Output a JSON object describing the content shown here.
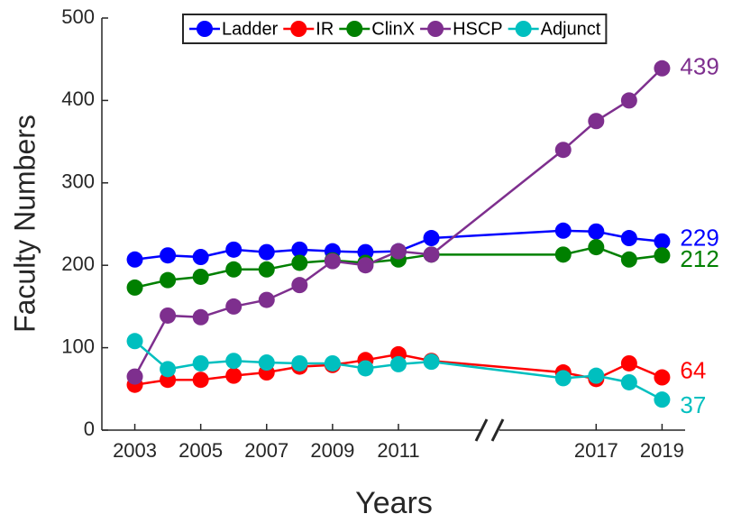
{
  "chart_data": {
    "type": "line",
    "x_label": "Years",
    "y_label": "Faculty Numbers",
    "x": [
      2003,
      2004,
      2005,
      2006,
      2007,
      2008,
      2009,
      2010,
      2011,
      2012,
      2016,
      2017,
      2018,
      2019
    ],
    "xlim": [
      2002,
      2019.7
    ],
    "xticks": [
      2003,
      2005,
      2007,
      2009,
      2011,
      2017,
      2019
    ],
    "ylim": [
      0,
      500
    ],
    "yticks": [
      0,
      100,
      200,
      300,
      400,
      500
    ],
    "grid": false,
    "legend": "top",
    "series": [
      {
        "name": "Ladder",
        "color": "#0000ff",
        "values": [
          207,
          212,
          210,
          219,
          216,
          219,
          217,
          216,
          217,
          233,
          242,
          241,
          233,
          229
        ]
      },
      {
        "name": "IR",
        "color": "#ff0000",
        "values": [
          55,
          61,
          61,
          66,
          70,
          77,
          79,
          85,
          92,
          84,
          70,
          62,
          81,
          64
        ]
      },
      {
        "name": "ClinX",
        "color": "#008000",
        "values": [
          173,
          182,
          186,
          195,
          195,
          203,
          206,
          203,
          207,
          213,
          213,
          222,
          207,
          212
        ]
      },
      {
        "name": "HSCP",
        "color": "#7e2f8e",
        "values": [
          65,
          139,
          137,
          150,
          158,
          176,
          205,
          200,
          217,
          213,
          340,
          375,
          400,
          439
        ]
      },
      {
        "name": "Adjunct",
        "color": "#00bfbf",
        "values": [
          108,
          74,
          81,
          84,
          82,
          81,
          81,
          75,
          80,
          83,
          63,
          66,
          58,
          37
        ]
      }
    ]
  }
}
